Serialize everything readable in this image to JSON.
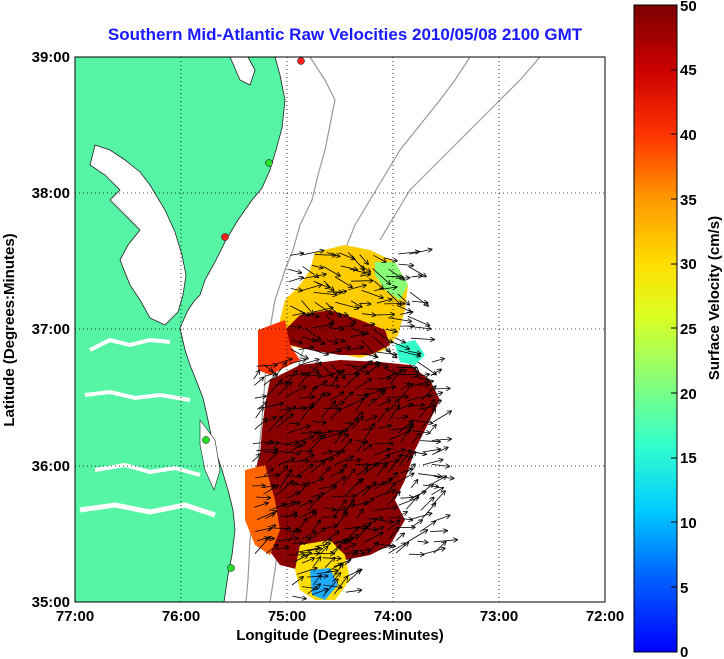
{
  "map": {
    "title": "Southern Mid-Atlantic Raw Velocities 2010/05/08 2100 GMT",
    "xlabel": "Longitude (Degrees:Minutes)",
    "ylabel": "Latitude (Degrees:Minutes)",
    "x_ticks": [
      "77:00",
      "76:00",
      "75:00",
      "74:00",
      "73:00",
      "72:00"
    ],
    "y_ticks": [
      "39:00",
      "38:00",
      "37:00",
      "36:00",
      "35:00"
    ],
    "land_color": "#55f5a5",
    "water_color": "#ffffff",
    "grid": true
  },
  "colorbar": {
    "label": "Surface Velocity (cm/s)",
    "ticks": [
      "50",
      "45",
      "40",
      "35",
      "30",
      "25",
      "20",
      "15",
      "10",
      "5",
      "0"
    ],
    "range": [
      0,
      50
    ],
    "colormap": "jet"
  },
  "stations": [
    {
      "name": "station-marker",
      "color": "#ff2020"
    },
    {
      "name": "station-marker",
      "color": "#28e028"
    },
    {
      "name": "station-marker",
      "color": "#ff2020"
    },
    {
      "name": "station-marker",
      "color": "#28e028"
    },
    {
      "name": "station-marker",
      "color": "#28e028"
    }
  ]
}
